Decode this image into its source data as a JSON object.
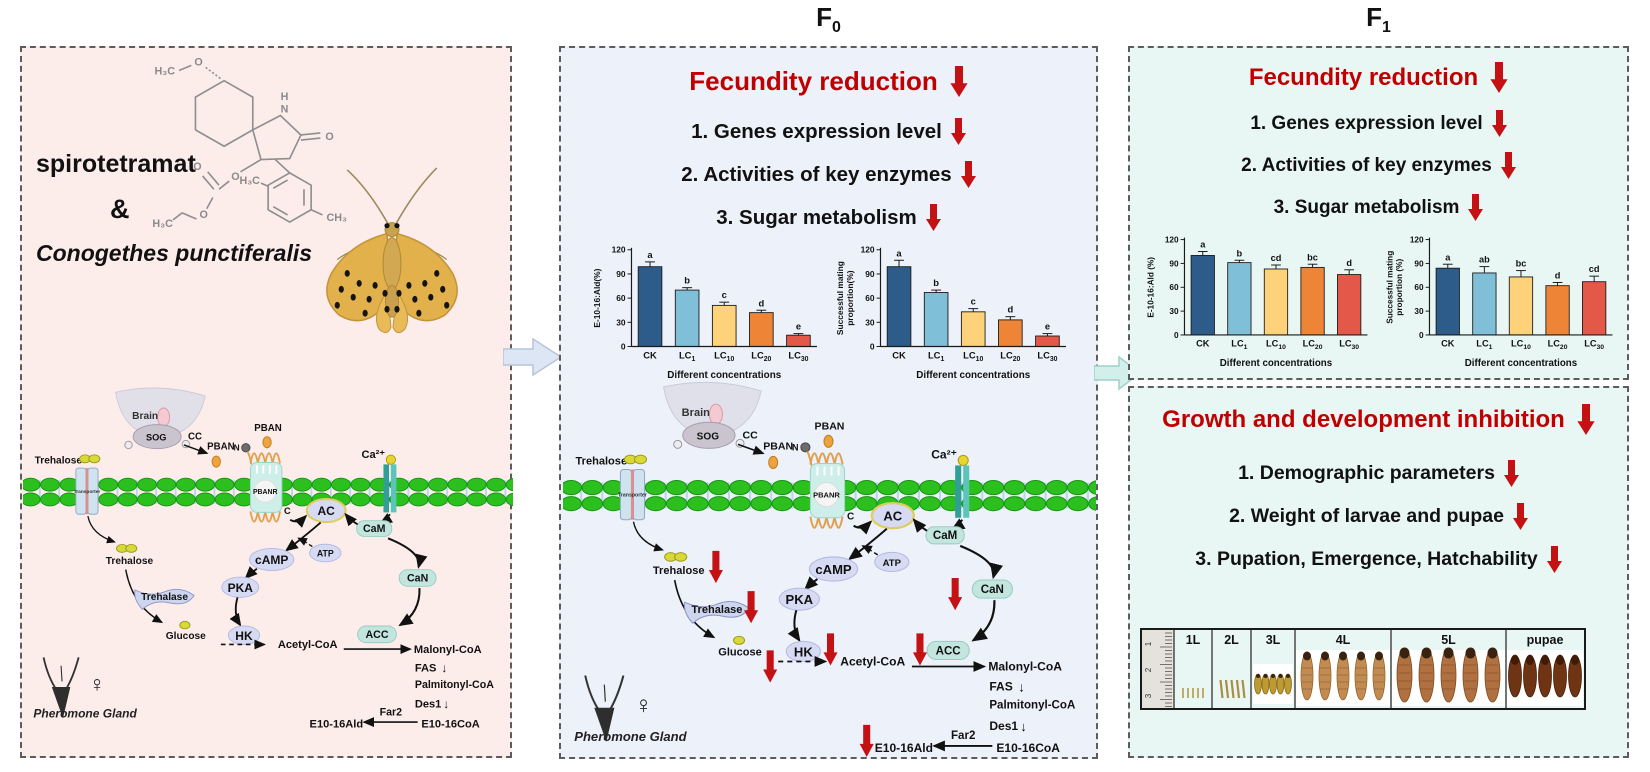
{
  "titles": {
    "f0_main": "F",
    "f0_sub": "0",
    "f1_main": "F",
    "f1_sub": "1"
  },
  "colors": {
    "heading_red": "#c00000",
    "arrow_red": "#c41114",
    "panel_left_bg": "#fcedeb",
    "panel_f0_bg": "#edf1f9",
    "panel_f1_bg": "#e8f7f4",
    "membrane_green": "#2cc01f",
    "bar_palette": [
      "#2e5c8a",
      "#7fc0d8",
      "#fdd27a",
      "#ee8435",
      "#e4584a"
    ]
  },
  "left_panel": {
    "drug": "spirotetramat",
    "ampersand": "&",
    "species": "Conogethes punctiferalis",
    "molecule": {
      "h3c_top": "H₃C",
      "o_methoxy": "O",
      "h_amine": "H",
      "n_amine": "N",
      "o_ketone": "O",
      "o_enol": "O",
      "o_carbonyl": "O",
      "o_ester": "O",
      "h3c_ethyl": "H₃C",
      "h3c_aryl": "H₃C",
      "ch3_aryl": "CH₃"
    }
  },
  "pathway": {
    "brain": "Brain",
    "sog": "SOG",
    "cc": "CC",
    "pban": "PBAN",
    "n_label": "N",
    "c_label": "C",
    "pbanr": "PBANR",
    "ca": "Ca²⁺",
    "trehalose_out": "Trehalose",
    "transporter": "Transporter",
    "trehalose_in": "Trehalose",
    "trehalase": "Trehalase",
    "glucose": "Glucose",
    "ac": "AC",
    "atp": "ATP",
    "camp": "cAMP",
    "pka": "PKA",
    "hk": "HK",
    "cam": "CaM",
    "can": "CaN",
    "acc": "ACC",
    "acetyl_coa": "Acetyl-CoA",
    "malonyl_coa": "Malonyl-CoA",
    "fas": "FAS",
    "palmitonyl_coa": "Palmitonyl-CoA",
    "des1": "Des1",
    "e10_16_coa": "E10-16CoA",
    "far2": "Far2",
    "e10_16_ald": "E10-16Ald",
    "arrow_down": "↓",
    "gland": "Pheromone Gland",
    "female": "♀"
  },
  "f0_panel": {
    "heading": "Fecundity reduction",
    "items": [
      "1. Genes expression level",
      "2. Activities of key enzymes",
      "3. Sugar metabolism"
    ]
  },
  "f1_panel": {
    "heading": "Fecundity reduction",
    "items": [
      "1. Genes expression level",
      "2. Activities of key enzymes",
      "3. Sugar metabolism"
    ]
  },
  "growth_panel": {
    "heading": "Growth and development inhibition",
    "items": [
      "1. Demographic parameters",
      "2. Weight of larvae and pupae",
      "3. Pupation, Emergence, Hatchability"
    ],
    "stages": [
      "1L",
      "2L",
      "3L",
      "4L",
      "5L",
      "pupae"
    ],
    "ruler_marks": [
      "1",
      "2",
      "3"
    ]
  },
  "chart_data": [
    {
      "id": "f0_e10_16_ald",
      "type": "bar",
      "panel": "F0",
      "categories": [
        "CK",
        "LC1",
        "LC10",
        "LC20",
        "LC30"
      ],
      "values": [
        99,
        70,
        51,
        42,
        14
      ],
      "errors": [
        6,
        3,
        4,
        3,
        2
      ],
      "sig_letters": [
        "a",
        "b",
        "c",
        "d",
        "e"
      ],
      "bar_colors": [
        "#2e5c8a",
        "#7fc0d8",
        "#fdd27a",
        "#ee8435",
        "#e4584a"
      ],
      "ylabel_lines": [
        "E-10-16:Ald(%)"
      ],
      "xlabel": "Different concentrations",
      "ylim": [
        0,
        120
      ],
      "yticks": [
        0,
        30,
        60,
        90,
        120
      ]
    },
    {
      "id": "f0_mating",
      "type": "bar",
      "panel": "F0",
      "categories": [
        "CK",
        "LC1",
        "LC10",
        "LC20",
        "LC30"
      ],
      "values": [
        99,
        67,
        43,
        33,
        13
      ],
      "errors": [
        8,
        3,
        4,
        4,
        3
      ],
      "sig_letters": [
        "a",
        "b",
        "c",
        "d",
        "e"
      ],
      "bar_colors": [
        "#2e5c8a",
        "#7fc0d8",
        "#fdd27a",
        "#ee8435",
        "#e4584a"
      ],
      "ylabel_lines": [
        "Successful mating",
        "proportion(%)"
      ],
      "xlabel": "Different concentrations",
      "ylim": [
        0,
        120
      ],
      "yticks": [
        0,
        30,
        60,
        90,
        120
      ]
    },
    {
      "id": "f1_e10_16_ald",
      "type": "bar",
      "panel": "F1",
      "categories": [
        "CK",
        "LC1",
        "LC10",
        "LC20",
        "LC30"
      ],
      "values": [
        100,
        91,
        83,
        85,
        76
      ],
      "errors": [
        5,
        3,
        5,
        4,
        6
      ],
      "sig_letters": [
        "a",
        "b",
        "cd",
        "bc",
        "d"
      ],
      "bar_colors": [
        "#2e5c8a",
        "#7fc0d8",
        "#fdd27a",
        "#ee8435",
        "#e4584a"
      ],
      "ylabel_lines": [
        "E-10-16:Ald (%)"
      ],
      "xlabel": "Different concentrations",
      "ylim": [
        0,
        120
      ],
      "yticks": [
        0,
        30,
        60,
        90,
        120
      ]
    },
    {
      "id": "f1_mating",
      "type": "bar",
      "panel": "F1",
      "categories": [
        "CK",
        "LC1",
        "LC10",
        "LC20",
        "LC30"
      ],
      "values": [
        84,
        78,
        73,
        62,
        67
      ],
      "errors": [
        5,
        8,
        8,
        4,
        7
      ],
      "sig_letters": [
        "a",
        "ab",
        "bc",
        "d",
        "cd"
      ],
      "bar_colors": [
        "#2e5c8a",
        "#7fc0d8",
        "#fdd27a",
        "#ee8435",
        "#e4584a"
      ],
      "ylabel_lines": [
        "Successful mating",
        "proportion (%)"
      ],
      "xlabel": "Different concentrations",
      "ylim": [
        0,
        120
      ],
      "yticks": [
        0,
        30,
        60,
        90,
        120
      ]
    }
  ]
}
